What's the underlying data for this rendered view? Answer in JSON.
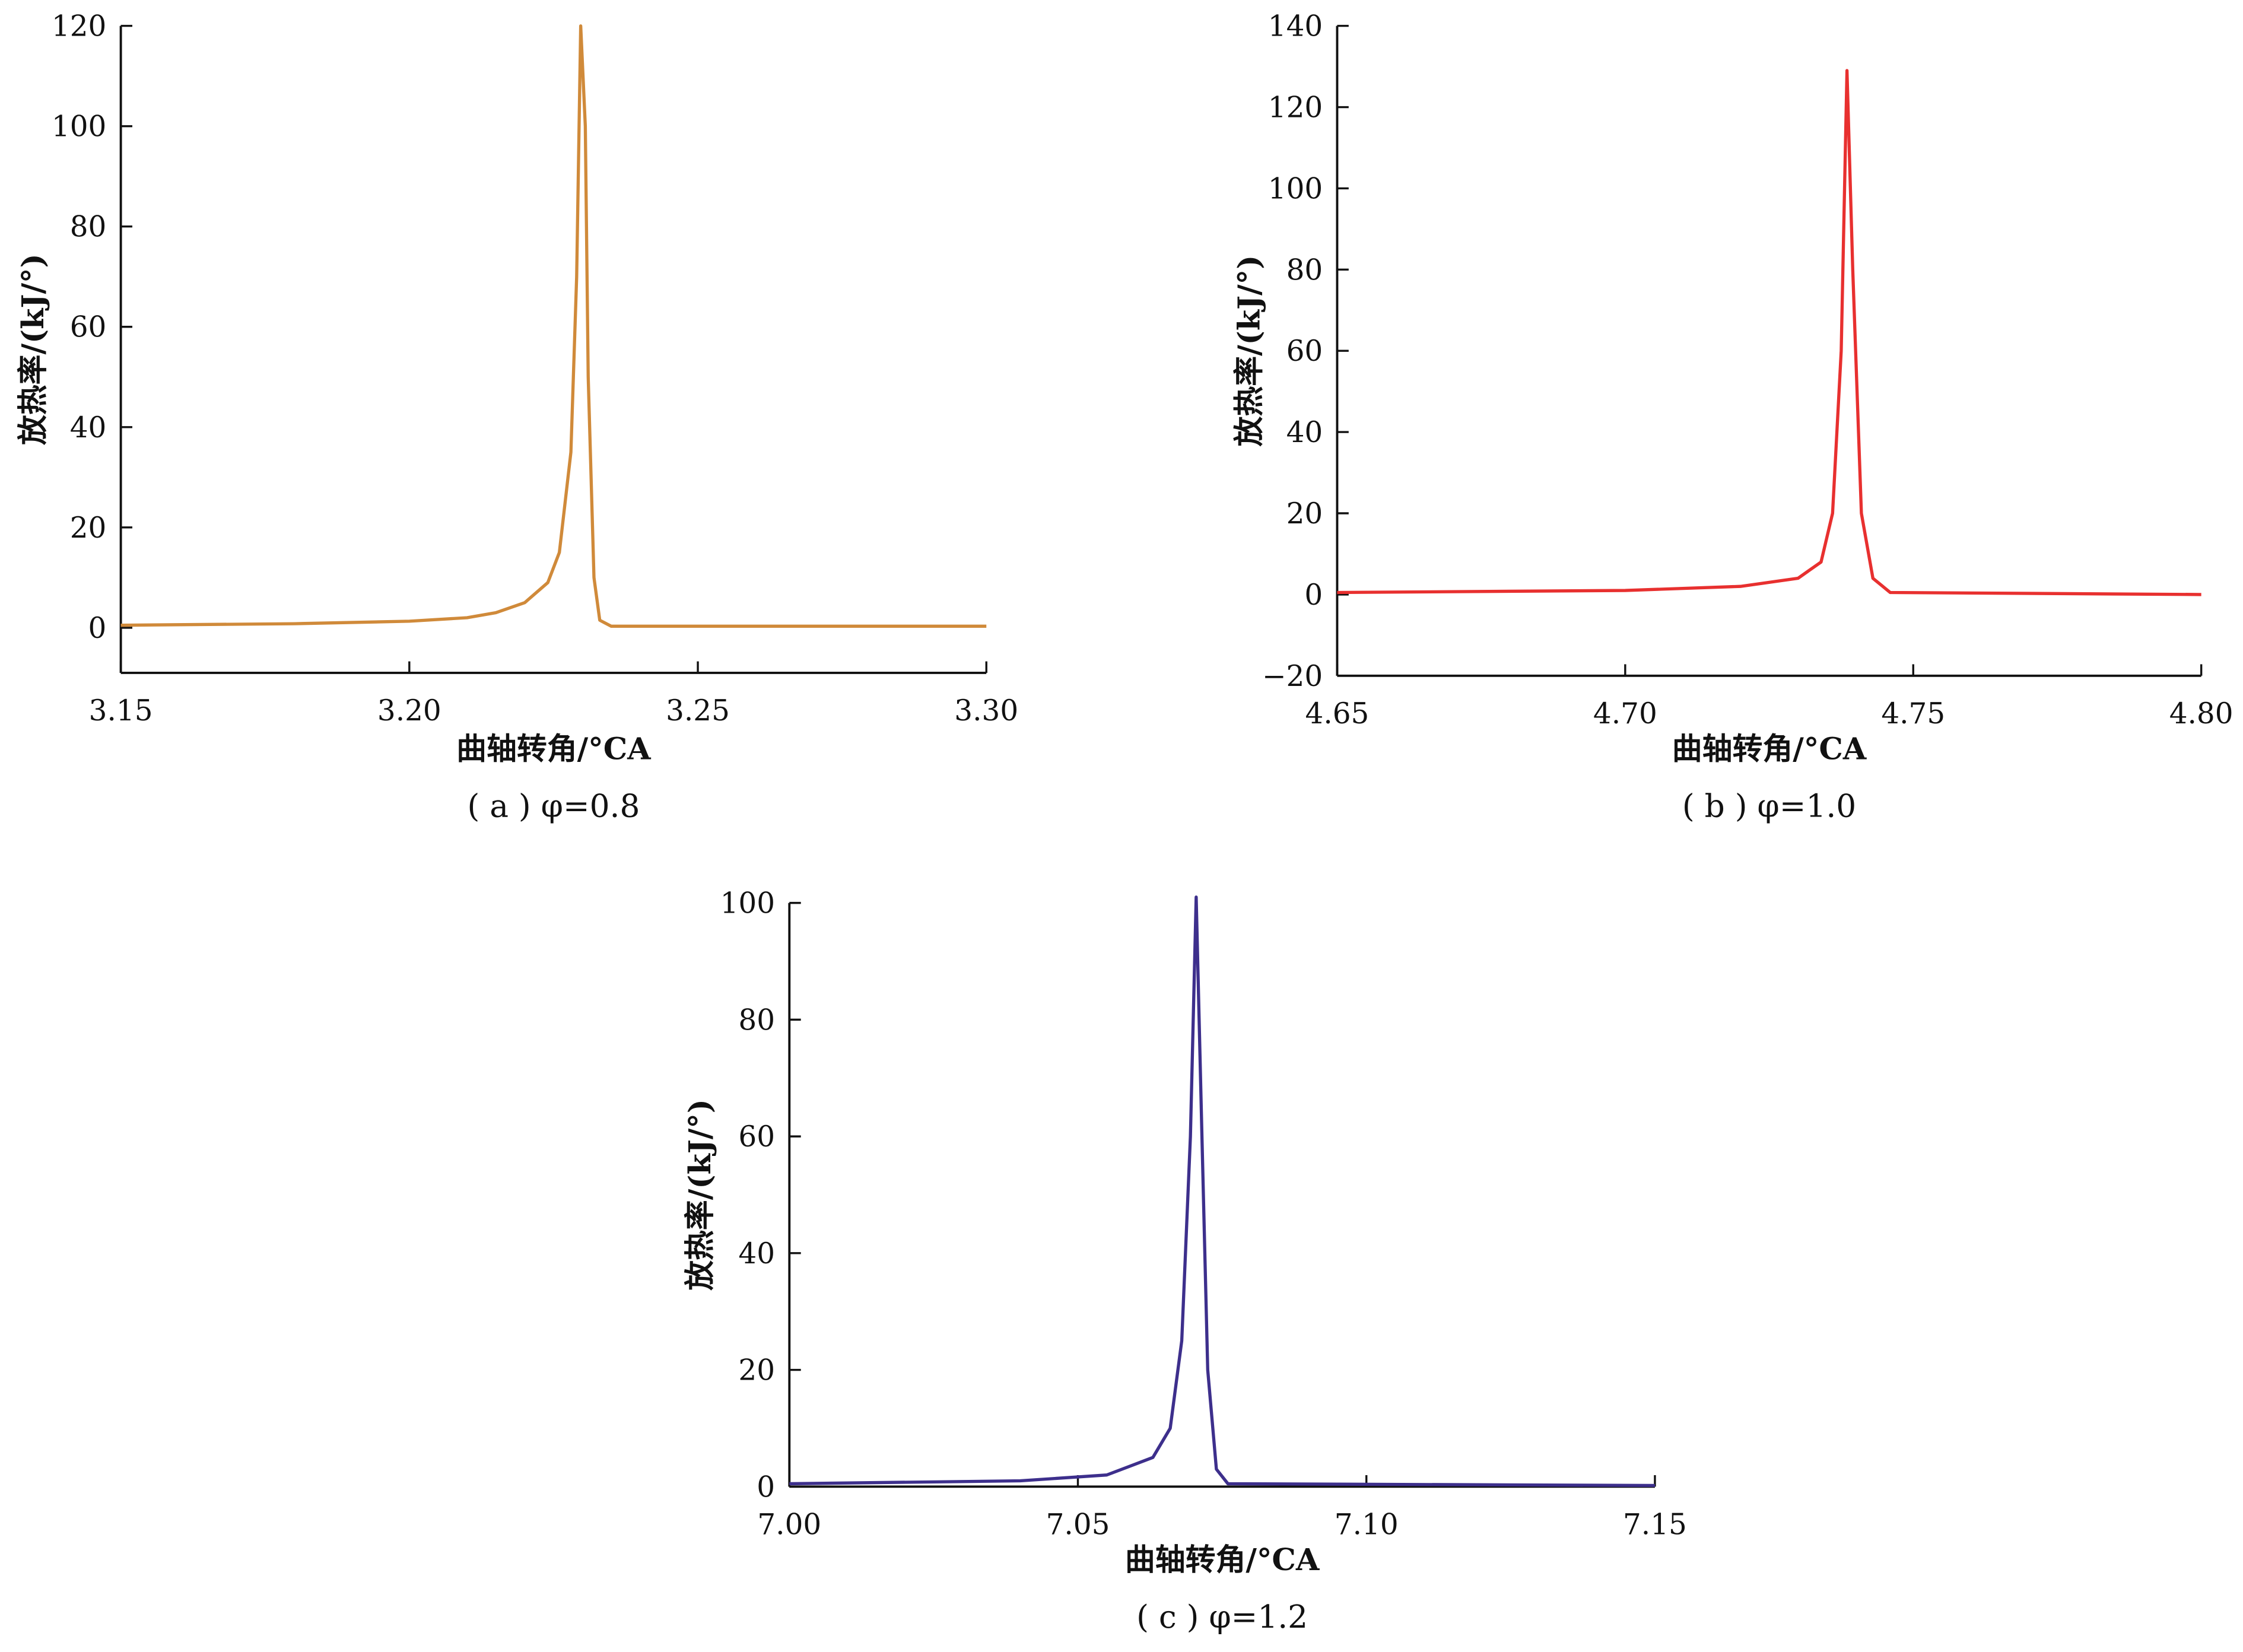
{
  "chart_data": [
    {
      "type": "line",
      "caption": "( a ) φ=0.8",
      "xlabel": "曲轴转角/°CA",
      "ylabel": "放热率/(kJ/°)",
      "xlim": [
        3.15,
        3.3
      ],
      "ylim": [
        -9,
        120
      ],
      "xticks": [
        "3.15",
        "3.20",
        "3.25",
        "3.30"
      ],
      "yticks": [
        "0",
        "20",
        "40",
        "60",
        "80",
        "100",
        "120"
      ],
      "color": "#d08a3a",
      "x": [
        3.15,
        3.18,
        3.2,
        3.21,
        3.215,
        3.22,
        3.224,
        3.226,
        3.228,
        3.229,
        3.2297,
        3.2305,
        3.231,
        3.232,
        3.233,
        3.235,
        3.3
      ],
      "y": [
        0.5,
        0.8,
        1.3,
        2,
        3,
        5,
        9,
        15,
        35,
        70,
        120,
        100,
        50,
        10,
        1.5,
        0.3,
        0.3
      ]
    },
    {
      "type": "line",
      "caption": "( b ) φ=1.0",
      "xlabel": "曲轴转角/°CA",
      "ylabel": "放热率/(kJ/°)",
      "xlim": [
        4.65,
        4.8
      ],
      "ylim": [
        -20,
        140
      ],
      "xticks": [
        "4.65",
        "4.70",
        "4.75",
        "4.80"
      ],
      "yticks": [
        "−20",
        "0",
        "20",
        "40",
        "60",
        "80",
        "100",
        "120",
        "140"
      ],
      "color": "#e8302f",
      "x": [
        4.65,
        4.7,
        4.72,
        4.73,
        4.734,
        4.736,
        4.7375,
        4.7385,
        4.7395,
        4.741,
        4.743,
        4.746,
        4.8
      ],
      "y": [
        0.5,
        1,
        2,
        4,
        8,
        20,
        60,
        129,
        80,
        20,
        4,
        0.5,
        0
      ],
      "y_negative_tick": true
    },
    {
      "type": "line",
      "caption": "( c ) φ=1.2",
      "xlabel": "曲轴转角/°CA",
      "ylabel": "放热率/(kJ/°)",
      "xlim": [
        7.0,
        7.15
      ],
      "ylim": [
        0,
        100
      ],
      "xticks": [
        "7.00",
        "7.05",
        "7.10",
        "7.15"
      ],
      "yticks": [
        "0",
        "20",
        "40",
        "60",
        "80",
        "100"
      ],
      "color": "#3d2f8c",
      "x": [
        7.0,
        7.04,
        7.055,
        7.063,
        7.066,
        7.068,
        7.0695,
        7.0705,
        7.0715,
        7.0725,
        7.074,
        7.076,
        7.15
      ],
      "y": [
        0.5,
        1,
        2,
        5,
        10,
        25,
        60,
        101,
        60,
        20,
        3,
        0.5,
        0.2
      ]
    }
  ]
}
